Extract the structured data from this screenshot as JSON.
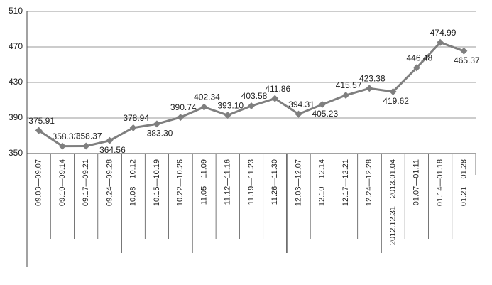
{
  "chart_data": {
    "type": "line",
    "categories": [
      "09.03—09.07",
      "09.10—09.14",
      "09.17—09.21",
      "09.24—09.28",
      "10.08—10.12",
      "10.15—10.19",
      "10.22—10.26",
      "11.05—11.09",
      "11.12—11.16",
      "11.19—11.23",
      "11.26—11.30",
      "12.03—12.07",
      "12.10—12.14",
      "12.17—12.21",
      "12.24—12.28",
      "2012.12.31—2013.01.04",
      "01.07—01.11",
      "01.14—01.18",
      "01.21—01.28"
    ],
    "series": [
      {
        "color": "#7f7f7f",
        "values": [
          375.91,
          358.33,
          358.37,
          364.56,
          378.94,
          383.3,
          390.74,
          402.34,
          393.1,
          403.58,
          411.86,
          394.31,
          405.23,
          415.57,
          423.38,
          419.62,
          446.48,
          474.99,
          465.37
        ],
        "value_labels": [
          "375.91",
          "358.33",
          "358.37",
          "364.56",
          "378.94",
          "383.30",
          "390.74",
          "402.34",
          "393.10",
          "403.58",
          "411.86",
          "394.31",
          "405.23",
          "415.57",
          "423.38",
          "419.62",
          "446.48",
          "474.99",
          "465.37"
        ]
      }
    ],
    "ylim": [
      350,
      510
    ],
    "yticks": [
      350,
      390,
      430,
      470,
      510
    ],
    "grid": true
  }
}
